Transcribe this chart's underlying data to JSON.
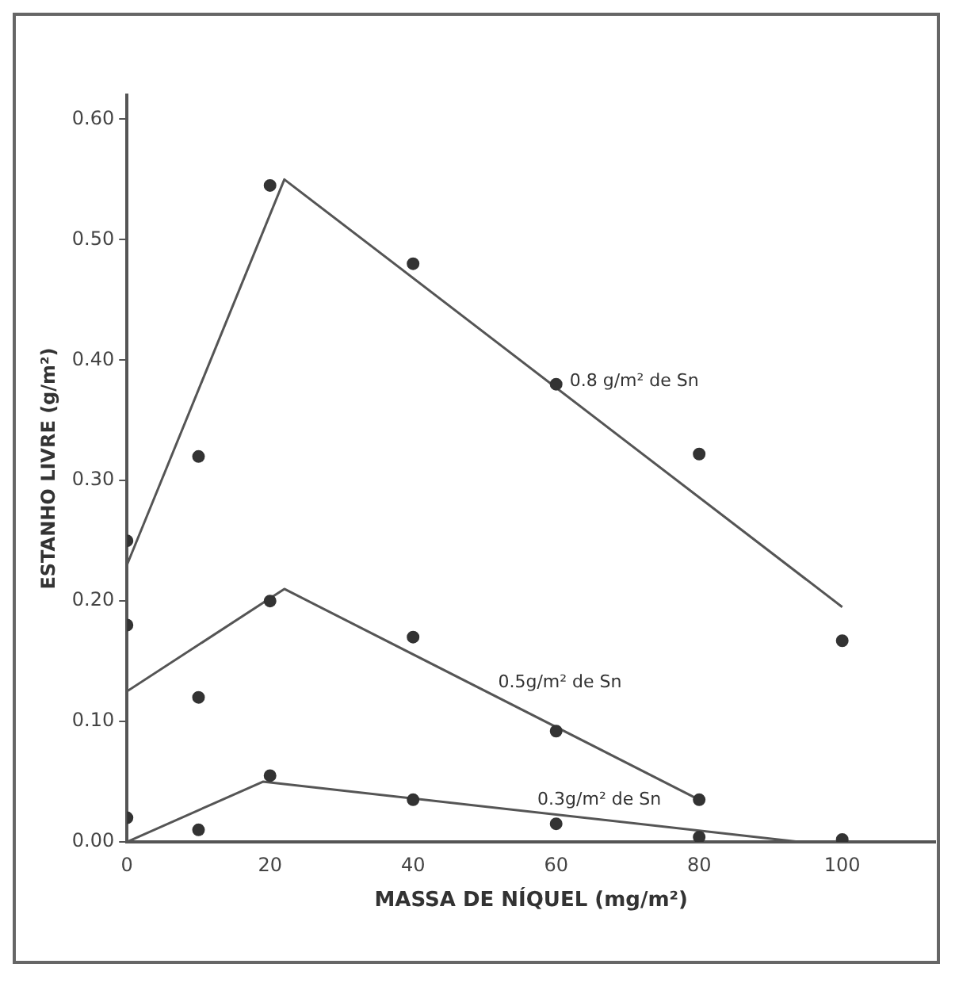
{
  "chart_data": {
    "type": "scatter",
    "xlabel": "MASSA DE NÍQUEL (mg/m²)",
    "ylabel": "ESTANHO LIVRE (g/m²)",
    "xlim": [
      0,
      113
    ],
    "ylim": [
      0,
      0.62
    ],
    "xticks": [
      0,
      20,
      40,
      60,
      80,
      100
    ],
    "yticks": [
      {
        "value": 0,
        "label": "0.00"
      },
      {
        "value": 0.1,
        "label": "0.10"
      },
      {
        "value": 0.2,
        "label": "0.20"
      },
      {
        "value": 0.3,
        "label": "0.30"
      },
      {
        "value": 0.4,
        "label": "0.40"
      },
      {
        "value": 0.5,
        "label": "0.50"
      },
      {
        "value": 0.6,
        "label": "0.60"
      }
    ],
    "grid": false,
    "legend": false,
    "marker": "circle",
    "series": [
      {
        "color": "#333333",
        "x": [
          0,
          10,
          20,
          40,
          60,
          80,
          100
        ],
        "values": [
          0.25,
          0.32,
          0.545,
          0.48,
          0.38,
          0.322,
          0.167
        ]
      },
      {
        "type": "line",
        "name": "0.8 g/m² de Sn",
        "color": "#555555",
        "marker": "none",
        "x": [
          0,
          22,
          100
        ],
        "values": [
          0.23,
          0.55,
          0.195
        ]
      },
      {
        "color": "#333333",
        "x": [
          0,
          10,
          20,
          40,
          60,
          80
        ],
        "values": [
          0.18,
          0.12,
          0.2,
          0.17,
          0.092,
          0.035
        ]
      },
      {
        "type": "line",
        "name": "0.5g/m² de Sn",
        "color": "#555555",
        "marker": "none",
        "x": [
          0,
          22,
          80
        ],
        "values": [
          0.125,
          0.21,
          0.035
        ]
      },
      {
        "color": "#333333",
        "x": [
          0,
          10,
          20,
          40,
          60,
          80,
          100
        ],
        "values": [
          0.02,
          0.01,
          0.055,
          0.035,
          0.015,
          0.004,
          0.002
        ]
      },
      {
        "type": "line",
        "name": "0.3g/m² de Sn",
        "color": "#555555",
        "marker": "none",
        "x": [
          0,
          19,
          94
        ],
        "values": [
          0,
          0.05,
          0
        ]
      }
    ]
  }
}
